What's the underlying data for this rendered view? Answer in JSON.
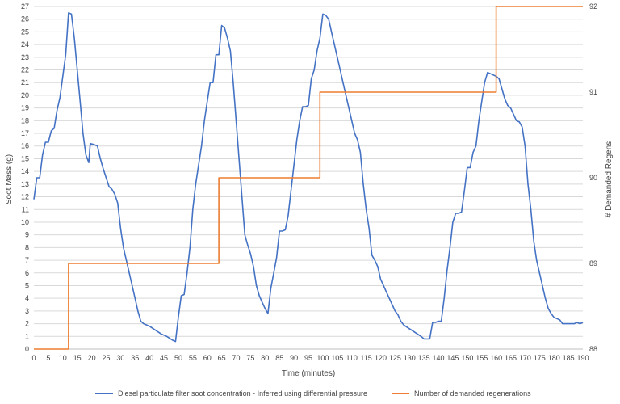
{
  "chart_data": {
    "type": "line",
    "title": "",
    "xlabel": "Time (minutes)",
    "ylabel": "Soot Mass (g)",
    "y2label": "# Demanded Regens",
    "xlim": [
      0,
      190
    ],
    "ylim": [
      0,
      27
    ],
    "y2lim": [
      88,
      92
    ],
    "xticks": [
      0,
      5,
      10,
      15,
      20,
      25,
      30,
      35,
      40,
      45,
      50,
      55,
      60,
      65,
      70,
      75,
      80,
      85,
      90,
      95,
      100,
      105,
      110,
      115,
      120,
      125,
      130,
      135,
      140,
      145,
      150,
      155,
      160,
      165,
      170,
      175,
      180,
      185,
      190
    ],
    "yticks": [
      0,
      1,
      2,
      3,
      4,
      5,
      6,
      7,
      8,
      9,
      10,
      11,
      12,
      13,
      14,
      15,
      16,
      17,
      18,
      19,
      20,
      21,
      22,
      23,
      24,
      25,
      26,
      27
    ],
    "y2ticks": [
      88,
      89,
      90,
      91,
      92
    ],
    "grid": true,
    "legend_position": "bottom",
    "series": [
      {
        "name": "Diesel particulate filter soot concentration  -  Inferred using differential pressure",
        "axis": "left",
        "color": "#4472c4",
        "points": [
          [
            0,
            11.8
          ],
          [
            1,
            13.5
          ],
          [
            2,
            13.5
          ],
          [
            3,
            15.3
          ],
          [
            4,
            16.3
          ],
          [
            5,
            16.3
          ],
          [
            6,
            17.2
          ],
          [
            7,
            17.4
          ],
          [
            8,
            18.8
          ],
          [
            9,
            19.8
          ],
          [
            10,
            21.5
          ],
          [
            11,
            23.2
          ],
          [
            12,
            26.5
          ],
          [
            13,
            26.4
          ],
          [
            14,
            24.5
          ],
          [
            15,
            22.0
          ],
          [
            16,
            19.5
          ],
          [
            17,
            17.0
          ],
          [
            18,
            15.3
          ],
          [
            19,
            14.7
          ],
          [
            19.5,
            16.2
          ],
          [
            21,
            16.1
          ],
          [
            22,
            16.0
          ],
          [
            23,
            15.0
          ],
          [
            24,
            14.2
          ],
          [
            25,
            13.5
          ],
          [
            26,
            12.8
          ],
          [
            27,
            12.6
          ],
          [
            28,
            12.2
          ],
          [
            29,
            11.5
          ],
          [
            30,
            9.5
          ],
          [
            31,
            8.0
          ],
          [
            32,
            7.0
          ],
          [
            33,
            6.0
          ],
          [
            34,
            5.0
          ],
          [
            35,
            4.0
          ],
          [
            36,
            3.0
          ],
          [
            37,
            2.2
          ],
          [
            38,
            2.0
          ],
          [
            40,
            1.8
          ],
          [
            42,
            1.5
          ],
          [
            44,
            1.2
          ],
          [
            46,
            1.0
          ],
          [
            48,
            0.7
          ],
          [
            49,
            0.6
          ],
          [
            50,
            2.5
          ],
          [
            51,
            4.2
          ],
          [
            52,
            4.3
          ],
          [
            53,
            6.0
          ],
          [
            54,
            8.0
          ],
          [
            55,
            11.0
          ],
          [
            56,
            13.0
          ],
          [
            57,
            14.5
          ],
          [
            58,
            16.0
          ],
          [
            59,
            18.0
          ],
          [
            60,
            19.5
          ],
          [
            61,
            21.0
          ],
          [
            62,
            21.0
          ],
          [
            63,
            23.2
          ],
          [
            64,
            23.2
          ],
          [
            65,
            25.5
          ],
          [
            66,
            25.3
          ],
          [
            67,
            24.5
          ],
          [
            68,
            23.5
          ],
          [
            69,
            21.0
          ],
          [
            70,
            18.0
          ],
          [
            71,
            15.0
          ],
          [
            72,
            12.0
          ],
          [
            73,
            9.0
          ],
          [
            74,
            8.2
          ],
          [
            75,
            7.5
          ],
          [
            76,
            6.5
          ],
          [
            77,
            5.0
          ],
          [
            78,
            4.2
          ],
          [
            79,
            3.7
          ],
          [
            80,
            3.2
          ],
          [
            81,
            2.8
          ],
          [
            82,
            4.8
          ],
          [
            83,
            6.0
          ],
          [
            84,
            7.2
          ],
          [
            85,
            9.3
          ],
          [
            86,
            9.3
          ],
          [
            87,
            9.4
          ],
          [
            88,
            10.5
          ],
          [
            89,
            12.5
          ],
          [
            90,
            14.5
          ],
          [
            91,
            16.5
          ],
          [
            92,
            18.0
          ],
          [
            93,
            19.1
          ],
          [
            94,
            19.1
          ],
          [
            95,
            19.2
          ],
          [
            96,
            21.3
          ],
          [
            97,
            22.0
          ],
          [
            98,
            23.5
          ],
          [
            99,
            24.5
          ],
          [
            100,
            26.4
          ],
          [
            101,
            26.3
          ],
          [
            102,
            26.0
          ],
          [
            103,
            25.0
          ],
          [
            104,
            24.0
          ],
          [
            105,
            23.0
          ],
          [
            106,
            22.0
          ],
          [
            107,
            21.0
          ],
          [
            108,
            20.0
          ],
          [
            109,
            19.0
          ],
          [
            110,
            18.0
          ],
          [
            111,
            17.0
          ],
          [
            112,
            16.5
          ],
          [
            113,
            15.5
          ],
          [
            114,
            13.0
          ],
          [
            115,
            11.0
          ],
          [
            116,
            9.5
          ],
          [
            117,
            7.4
          ],
          [
            118,
            7.0
          ],
          [
            119,
            6.5
          ],
          [
            120,
            5.5
          ],
          [
            121,
            5.0
          ],
          [
            122,
            4.5
          ],
          [
            123,
            4.0
          ],
          [
            124,
            3.5
          ],
          [
            125,
            3.0
          ],
          [
            126,
            2.7
          ],
          [
            127,
            2.2
          ],
          [
            128,
            1.9
          ],
          [
            130,
            1.6
          ],
          [
            132,
            1.3
          ],
          [
            134,
            1.0
          ],
          [
            135,
            0.8
          ],
          [
            137,
            0.8
          ],
          [
            138,
            2.1
          ],
          [
            139,
            2.1
          ],
          [
            140,
            2.2
          ],
          [
            141,
            2.2
          ],
          [
            142,
            4.0
          ],
          [
            143,
            6.2
          ],
          [
            144,
            8.0
          ],
          [
            145,
            10.0
          ],
          [
            146,
            10.7
          ],
          [
            147,
            10.7
          ],
          [
            148,
            10.8
          ],
          [
            149,
            12.5
          ],
          [
            150,
            14.3
          ],
          [
            151,
            14.3
          ],
          [
            152,
            15.5
          ],
          [
            153,
            16.0
          ],
          [
            154,
            18.0
          ],
          [
            155,
            19.5
          ],
          [
            156,
            21.0
          ],
          [
            157,
            21.8
          ],
          [
            158,
            21.7
          ],
          [
            159,
            21.6
          ],
          [
            160,
            21.5
          ],
          [
            161,
            21.3
          ],
          [
            162,
            20.5
          ],
          [
            163,
            19.7
          ],
          [
            164,
            19.2
          ],
          [
            165,
            19.0
          ],
          [
            166,
            18.5
          ],
          [
            167,
            18.0
          ],
          [
            168,
            17.9
          ],
          [
            169,
            17.5
          ],
          [
            170,
            16.0
          ],
          [
            171,
            13.0
          ],
          [
            172,
            11.0
          ],
          [
            173,
            8.5
          ],
          [
            174,
            7.0
          ],
          [
            175,
            6.0
          ],
          [
            176,
            5.0
          ],
          [
            177,
            4.0
          ],
          [
            178,
            3.2
          ],
          [
            179,
            2.8
          ],
          [
            180,
            2.5
          ],
          [
            182,
            2.3
          ],
          [
            183,
            2.0
          ],
          [
            185,
            2.0
          ],
          [
            187,
            2.0
          ],
          [
            188,
            2.1
          ],
          [
            189,
            2.0
          ],
          [
            190,
            2.1
          ]
        ]
      },
      {
        "name": "Number of demanded regenerations",
        "axis": "right",
        "color": "#ed7d31",
        "points": [
          [
            0,
            88
          ],
          [
            12,
            88
          ],
          [
            12,
            89
          ],
          [
            64,
            89
          ],
          [
            64,
            90
          ],
          [
            99,
            90
          ],
          [
            99,
            91
          ],
          [
            160,
            91
          ],
          [
            160,
            92
          ],
          [
            190,
            92
          ]
        ]
      }
    ]
  }
}
